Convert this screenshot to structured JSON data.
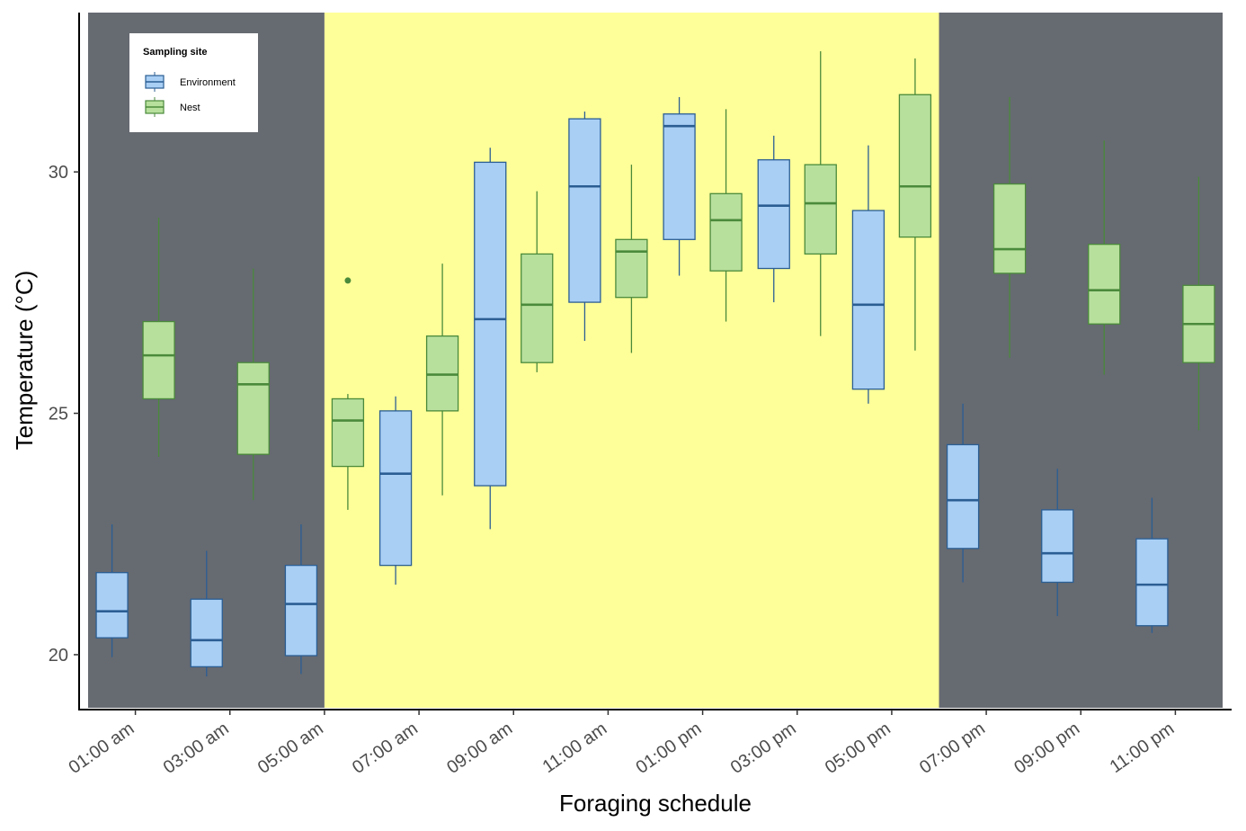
{
  "chart_data": {
    "type": "boxplot",
    "xlabel": "Foraging schedule",
    "ylabel": "Temperature (°C)",
    "ylim": [
      18.9,
      33.3
    ],
    "yticks": [
      20,
      25,
      30
    ],
    "categories": [
      "01:00 am",
      "03:00 am",
      "05:00 am",
      "07:00 am",
      "09:00 am",
      "11:00 am",
      "01:00 pm",
      "03:00 pm",
      "05:00 pm",
      "07:00 pm",
      "09:00 pm",
      "11:00 pm"
    ],
    "background_bands": [
      {
        "from": 0.5,
        "to": 3.0,
        "color": "#666a71",
        "meaning": "night"
      },
      {
        "from": 3.0,
        "to": 9.5,
        "color": "#ffff99",
        "meaning": "day"
      },
      {
        "from": 9.5,
        "to": 12.5,
        "color": "#666a71",
        "meaning": "night"
      }
    ],
    "legend": {
      "title": "Sampling site",
      "position": "top-left"
    },
    "series": [
      {
        "name": "Environment",
        "fill": "#a9cff5",
        "stroke": "#2b5e93",
        "boxes": [
          {
            "category": "01:00 am",
            "min": 19.95,
            "q1": 20.35,
            "median": 20.9,
            "q3": 21.7,
            "max": 22.7
          },
          {
            "category": "03:00 am",
            "min": 19.55,
            "q1": 19.75,
            "median": 20.3,
            "q3": 21.15,
            "max": 22.15
          },
          {
            "category": "05:00 am",
            "min": 19.6,
            "q1": 19.98,
            "median": 21.05,
            "q3": 21.85,
            "max": 22.7
          },
          {
            "category": "07:00 am",
            "min": 21.45,
            "q1": 21.85,
            "median": 23.75,
            "q3": 25.05,
            "max": 25.35
          },
          {
            "category": "09:00 am",
            "min": 22.6,
            "q1": 23.5,
            "median": 26.95,
            "q3": 30.2,
            "max": 30.5
          },
          {
            "category": "11:00 am",
            "min": 26.5,
            "q1": 27.3,
            "median": 29.7,
            "q3": 31.1,
            "max": 31.25
          },
          {
            "category": "01:00 pm",
            "min": 27.85,
            "q1": 28.6,
            "median": 30.95,
            "q3": 31.2,
            "max": 31.55
          },
          {
            "category": "03:00 pm",
            "min": 27.3,
            "q1": 28.0,
            "median": 29.3,
            "q3": 30.25,
            "max": 30.75
          },
          {
            "category": "05:00 pm",
            "min": 25.2,
            "q1": 25.5,
            "median": 27.25,
            "q3": 29.2,
            "max": 30.55
          },
          {
            "category": "07:00 pm",
            "min": 21.5,
            "q1": 22.2,
            "median": 23.2,
            "q3": 24.35,
            "max": 25.2
          },
          {
            "category": "09:00 pm",
            "min": 20.8,
            "q1": 21.5,
            "median": 22.1,
            "q3": 23.0,
            "max": 23.85
          },
          {
            "category": "11:00 pm",
            "min": 20.45,
            "q1": 20.6,
            "median": 21.45,
            "q3": 22.4,
            "max": 23.25
          }
        ],
        "outliers": []
      },
      {
        "name": "Nest",
        "fill": "#b8e09d",
        "stroke": "#4a8a3b",
        "boxes": [
          {
            "category": "01:00 am",
            "min": 24.1,
            "q1": 25.3,
            "median": 26.2,
            "q3": 26.9,
            "max": 29.05
          },
          {
            "category": "03:00 am",
            "min": 23.2,
            "q1": 24.15,
            "median": 25.6,
            "q3": 26.05,
            "max": 28.0
          },
          {
            "category": "05:00 am",
            "min": 23.0,
            "q1": 23.9,
            "median": 24.85,
            "q3": 25.3,
            "max": 25.4
          },
          {
            "category": "07:00 am",
            "min": 23.3,
            "q1": 25.05,
            "median": 25.8,
            "q3": 26.6,
            "max": 28.1
          },
          {
            "category": "09:00 am",
            "min": 25.85,
            "q1": 26.05,
            "median": 27.25,
            "q3": 28.3,
            "max": 29.6
          },
          {
            "category": "11:00 am",
            "min": 26.25,
            "q1": 27.4,
            "median": 28.35,
            "q3": 28.6,
            "max": 30.15
          },
          {
            "category": "01:00 pm",
            "min": 26.9,
            "q1": 27.95,
            "median": 29.0,
            "q3": 29.55,
            "max": 31.3
          },
          {
            "category": "03:00 pm",
            "min": 26.6,
            "q1": 28.3,
            "median": 29.35,
            "q3": 30.15,
            "max": 32.5
          },
          {
            "category": "05:00 pm",
            "min": 26.3,
            "q1": 28.65,
            "median": 29.7,
            "q3": 31.6,
            "max": 32.35
          },
          {
            "category": "07:00 pm",
            "min": 26.15,
            "q1": 27.9,
            "median": 28.4,
            "q3": 29.75,
            "max": 31.55
          },
          {
            "category": "09:00 pm",
            "min": 25.8,
            "q1": 26.85,
            "median": 27.55,
            "q3": 28.5,
            "max": 30.65
          },
          {
            "category": "11:00 pm",
            "min": 24.65,
            "q1": 26.05,
            "median": 26.85,
            "q3": 27.65,
            "max": 29.9
          }
        ],
        "outliers": [
          {
            "category": "05:00 am",
            "value": 27.75
          }
        ]
      }
    ]
  }
}
